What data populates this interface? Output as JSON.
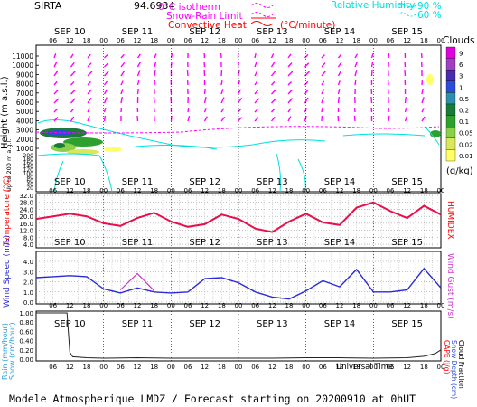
{
  "header": {
    "station": "SIRTA",
    "coords": "94.6934",
    "legend_isotherm": "0°C isotherm",
    "legend_snow_rain": "Snow-Rain Limit",
    "legend_convective": "Convective Heat.",
    "convective_unit": "(°C/minute)",
    "legend_rh": "Relative Humidity",
    "rh_90": "90 %",
    "rh_60": "60 %"
  },
  "footer": "Modele Atmospherique LMDZ / Forecast starting on 20200910 at 0hUT",
  "universal_time": "Universal Time",
  "colors": {
    "magenta": "#ff00ff",
    "cyan": "#00e0e0",
    "red": "#ff0000",
    "temperature": "#e8104a",
    "wind": "#2a2ad8",
    "gust": "#cc33cc",
    "precip": "#222222"
  },
  "chart_data": [
    {
      "type": "heatmap",
      "panel": "clouds",
      "days": [
        "SEP 10",
        "SEP 11",
        "SEP 12",
        "SEP 13",
        "SEP 14",
        "SEP 15"
      ],
      "hour_ticks": [
        "06",
        "12",
        "18",
        "00"
      ],
      "ylabel": "Height (m a.s.l.)",
      "ylabel_low": "Up to 200 m a.g.l.",
      "y_upper_ticks": [
        "11000",
        "10000",
        "9000",
        "8000",
        "7000",
        "6000",
        "5000",
        "4000",
        "3000",
        "2000",
        "1000"
      ],
      "y_lower_ticks": [
        "200",
        "180",
        "160",
        "140",
        "120",
        "100",
        "80",
        "60",
        "40",
        "20"
      ],
      "colorbar_title": "Clouds",
      "colorbar_unit": "(g/kg)",
      "colorbar_ticks": [
        "9",
        "6",
        "3",
        "1",
        "0.5",
        "0.2",
        "0.1",
        "0.05",
        "0.02",
        "0.01"
      ],
      "colorbar_colors": [
        "#e000e0",
        "#a040c0",
        "#4a2ab0",
        "#2a4cd8",
        "#2d8fb0",
        "#1a7a3a",
        "#2ea02e",
        "#8ad04a",
        "#d8e85a",
        "#ffff66"
      ]
    },
    {
      "type": "line",
      "panel": "temperature",
      "ylabel": "Temperature (°C)",
      "ylabel_right": "HUMIDEX",
      "y_ticks": [
        "32.0",
        "28.0",
        "24.0",
        "20.0",
        "16.0",
        "12.0",
        "8.0",
        "4.0"
      ],
      "ylim": [
        3,
        32
      ],
      "x": [
        0,
        6,
        12,
        18,
        24,
        30,
        36,
        42,
        48,
        54,
        60,
        66,
        72,
        78,
        84,
        90,
        96,
        102,
        108,
        114,
        120,
        126,
        132,
        138,
        144
      ],
      "values": [
        18.5,
        20,
        21.5,
        20,
        16,
        14.5,
        19,
        22,
        17,
        14,
        15.5,
        21,
        18.5,
        13,
        11,
        17,
        21.5,
        16.5,
        15,
        25,
        28,
        23,
        19,
        26,
        21
      ]
    },
    {
      "type": "line",
      "panel": "wind",
      "ylabel": "Wind Speed (m/s)",
      "ylabel_right": "Wind Gust (m/s)",
      "y_ticks": [
        "4.0",
        "3.0",
        "2.0",
        "1.0",
        "0.0"
      ],
      "ylim": [
        0,
        4.8
      ],
      "x": [
        0,
        6,
        12,
        18,
        24,
        30,
        36,
        42,
        48,
        54,
        60,
        66,
        72,
        78,
        84,
        90,
        96,
        102,
        108,
        114,
        120,
        126,
        132,
        138,
        144
      ],
      "series": [
        {
          "values": [
            2.4,
            2.5,
            2.6,
            2.5,
            1.3,
            0.9,
            1.4,
            1.0,
            0.9,
            1.0,
            2.3,
            2.4,
            1.9,
            1.0,
            0.5,
            0.3,
            1.1,
            2.1,
            1.5,
            3.2,
            1.0,
            1.0,
            1.2,
            3.3,
            1.4
          ]
        },
        {
          "values": [
            null,
            null,
            null,
            null,
            null,
            1.2,
            2.8,
            1.1,
            null,
            null,
            null,
            null,
            null,
            null,
            null,
            null,
            null,
            null,
            null,
            null,
            null,
            null,
            null,
            null,
            null
          ]
        }
      ]
    },
    {
      "type": "line",
      "panel": "precip",
      "ylabel_left": [
        "Rain (mm/hour)",
        "Snow (cm/hour)"
      ],
      "ylabel_right": [
        "CAPE (J/g)",
        "Snow Depth (cm)",
        "Cloud Fraction"
      ],
      "y_ticks": [
        "1.00",
        "0.80",
        "0.60",
        "0.40",
        "0.20",
        "0.00"
      ],
      "ylim": [
        0,
        1.0
      ],
      "x": [
        0,
        4,
        8,
        11,
        12,
        13,
        18,
        24,
        36,
        48,
        60,
        72,
        84,
        96,
        108,
        120,
        132,
        138,
        142,
        144
      ],
      "values": [
        1.0,
        1.0,
        1.0,
        1.0,
        0.15,
        0.05,
        0.03,
        0.02,
        0.03,
        0.02,
        0.02,
        0.02,
        0.02,
        0.03,
        0.03,
        0.02,
        0.03,
        0.06,
        0.12,
        0.2
      ]
    }
  ]
}
